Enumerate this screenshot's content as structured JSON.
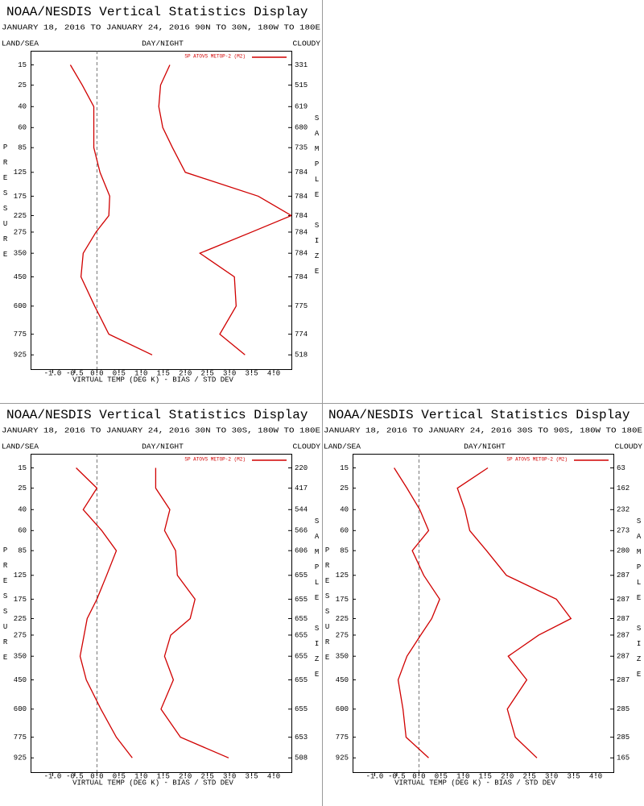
{
  "chart_data": [
    {
      "type": "line",
      "title": "NOAA/NESDIS Vertical Statistics Display",
      "subtitle": "JANUARY 18, 2016 TO JANUARY 24, 2016  90N TO 30N, 180W TO 180E",
      "corner_labels": [
        "LAND/SEA",
        "DAY/NIGHT",
        "CLOUDY"
      ],
      "x_label": "VIRTUAL TEMP (DEG K) - BIAS / STD DEV",
      "y_label": "PRESSURE",
      "y2_label": "SAMPLE SIZE",
      "xlim": [
        -1.5,
        4.4
      ],
      "xticks": [
        {
          "value": -1,
          "label": "-1.0"
        },
        -0.5,
        {
          "value": 0,
          "label": "0.0"
        },
        0.5,
        {
          "value": 1,
          "label": "1.0"
        },
        1.5,
        {
          "value": 2,
          "label": "2.0"
        },
        2.5,
        {
          "value": 3,
          "label": "3.0"
        },
        3.5,
        {
          "value": 4,
          "label": "4.0"
        }
      ],
      "ylim": [
        10,
        1040
      ],
      "y": [
        15,
        25,
        40,
        60,
        85,
        125,
        175,
        225,
        275,
        350,
        450,
        600,
        775,
        925
      ],
      "sample_sizes": [
        331,
        515,
        619,
        680,
        735,
        784,
        784,
        784,
        784,
        784,
        784,
        775,
        774,
        518
      ],
      "zero_line": true,
      "series": [
        {
          "name": "SP ATOVS METOP-2 (M2)",
          "color": "#d00000",
          "bias": [
            -0.6,
            -0.33,
            -0.07,
            -0.07,
            -0.07,
            0.07,
            0.29,
            0.27,
            -0.02,
            -0.31,
            -0.36,
            -0.05,
            0.27,
            1.25
          ],
          "std_dev": [
            1.65,
            1.44,
            1.4,
            1.49,
            1.71,
            2.0,
            3.65,
            4.4,
            3.5,
            2.33,
            3.11,
            3.15,
            2.78,
            3.35
          ]
        }
      ]
    },
    {
      "type": "line",
      "title": "NOAA/NESDIS Vertical Statistics Display",
      "subtitle": "JANUARY 18, 2016 TO JANUARY 24, 2016  30N TO 30S, 180W TO 180E",
      "corner_labels": [
        "LAND/SEA",
        "DAY/NIGHT",
        "CLOUDY"
      ],
      "x_label": "VIRTUAL TEMP (DEG K) - BIAS / STD DEV",
      "y_label": "PRESSURE",
      "y2_label": "SAMPLE SIZE",
      "xlim": [
        -1.5,
        4.4
      ],
      "xticks": [
        {
          "value": -1,
          "label": "-1.0"
        },
        -0.5,
        {
          "value": 0,
          "label": "0.0"
        },
        0.5,
        {
          "value": 1,
          "label": "1.0"
        },
        1.5,
        {
          "value": 2,
          "label": "2.0"
        },
        2.5,
        {
          "value": 3,
          "label": "3.0"
        },
        3.5,
        {
          "value": 4,
          "label": "4.0"
        }
      ],
      "ylim": [
        10,
        1040
      ],
      "y": [
        15,
        25,
        40,
        60,
        85,
        125,
        175,
        225,
        275,
        350,
        450,
        600,
        775,
        925
      ],
      "sample_sizes": [
        220,
        417,
        544,
        566,
        606,
        655,
        655,
        655,
        655,
        655,
        655,
        655,
        653,
        508
      ],
      "zero_line": true,
      "series": [
        {
          "name": "SP ATOVS METOP-2 (M2)",
          "color": "#d00000",
          "bias": [
            -0.47,
            0,
            -0.31,
            0.11,
            0.44,
            0.22,
            0,
            -0.22,
            -0.29,
            -0.38,
            -0.24,
            0.09,
            0.44,
            0.8
          ],
          "std_dev": [
            1.33,
            1.33,
            1.65,
            1.53,
            1.78,
            1.82,
            2.22,
            2.11,
            1.67,
            1.53,
            1.73,
            1.45,
            1.89,
            2.98
          ]
        }
      ]
    },
    {
      "type": "line",
      "title": "NOAA/NESDIS Vertical Statistics Display",
      "subtitle": "JANUARY 18, 2016 TO JANUARY 24, 2016  30S TO 90S, 180W TO 180E",
      "corner_labels": [
        "LAND/SEA",
        "DAY/NIGHT",
        "CLOUDY"
      ],
      "x_label": "VIRTUAL TEMP (DEG K) - BIAS / STD DEV",
      "y_label": "PRESSURE",
      "y2_label": "SAMPLE SIZE",
      "xlim": [
        -1.5,
        4.4
      ],
      "xticks": [
        {
          "value": -1,
          "label": "-1.0"
        },
        -0.5,
        {
          "value": 0,
          "label": "0.0"
        },
        0.5,
        {
          "value": 1,
          "label": "1.0"
        },
        1.5,
        {
          "value": 2,
          "label": "2.0"
        },
        2.5,
        {
          "value": 3,
          "label": "3.0"
        },
        3.5,
        {
          "value": 4,
          "label": "4.0"
        }
      ],
      "ylim": [
        10,
        1040
      ],
      "y": [
        15,
        25,
        40,
        60,
        85,
        125,
        175,
        225,
        275,
        350,
        450,
        600,
        775,
        925
      ],
      "sample_sizes": [
        63,
        162,
        232,
        273,
        280,
        287,
        287,
        287,
        287,
        287,
        287,
        285,
        285,
        165
      ],
      "zero_line": true,
      "series": [
        {
          "name": "SP ATOVS METOP-2 (M2)",
          "color": "#d00000",
          "bias": [
            -0.56,
            -0.27,
            0.02,
            0.22,
            -0.15,
            0.11,
            0.47,
            0.29,
            0.04,
            -0.27,
            -0.47,
            -0.36,
            -0.29,
            0.22
          ],
          "std_dev": [
            1.56,
            0.87,
            1.04,
            1.15,
            1.53,
            1.98,
            3.11,
            3.44,
            2.71,
            2.02,
            2.44,
            2.0,
            2.18,
            2.67
          ]
        }
      ]
    }
  ]
}
